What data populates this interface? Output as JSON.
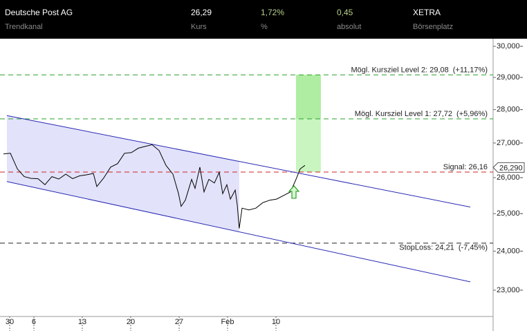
{
  "header": {
    "name": "Deutsche Post AG",
    "name_sub": "Trendkanal",
    "fields": [
      {
        "value": "26,29",
        "label": "Kurs"
      },
      {
        "value": "1,72%",
        "label": "%"
      },
      {
        "value": "0,45",
        "label": "absolut"
      },
      {
        "value": "XETRA",
        "label": "Börsenplatz"
      }
    ]
  },
  "chart_data": {
    "type": "line",
    "log_y": true,
    "xlim": [
      -1,
      49.93
    ],
    "ylim": [
      22.35,
      30.25
    ],
    "xticks": [
      {
        "value": 0,
        "label": "30"
      },
      {
        "value": 2.5,
        "label": "6"
      },
      {
        "value": 7.5,
        "label": "13"
      },
      {
        "value": 12.5,
        "label": "20"
      },
      {
        "value": 17.5,
        "label": "27"
      },
      {
        "value": 22.5,
        "label": "Feb"
      },
      {
        "value": 27.5,
        "label": "10"
      }
    ],
    "yticks": [
      {
        "value": 23,
        "label": "23,000"
      },
      {
        "value": 24,
        "label": "24,000"
      },
      {
        "value": 25,
        "label": "25,000"
      },
      {
        "value": 26,
        "label": "26,000"
      },
      {
        "value": 27,
        "label": "27,000"
      },
      {
        "value": 28,
        "label": "28,000"
      },
      {
        "value": 29,
        "label": "29,000"
      },
      {
        "value": 30,
        "label": "30,000"
      }
    ],
    "series": [
      {
        "color": "#000000",
        "x": [
          -0.64,
          0.07,
          0.79,
          1.5,
          2.21,
          2.93,
          3.64,
          4.36,
          5.07,
          5.79,
          6.5,
          7.21,
          7.93,
          8.64,
          9.0,
          9.71,
          10.43,
          11.14,
          11.86,
          12.57,
          13.29,
          14.0,
          14.71,
          15.43,
          16.14,
          16.86,
          17.43,
          17.71,
          18.14,
          18.79,
          19.14,
          19.64,
          20.07,
          20.57,
          21.14,
          21.64,
          22.0,
          22.43,
          22.79,
          23.29,
          23.5,
          23.71,
          24.0,
          24.71,
          25.43,
          26.14,
          26.86,
          27.57,
          28.29,
          29.0,
          29.57,
          30.0,
          30.5
        ],
        "values": [
          26.68,
          26.7,
          26.25,
          26.03,
          25.98,
          25.97,
          25.8,
          26.03,
          25.96,
          26.1,
          25.97,
          26.05,
          26.08,
          26.12,
          25.75,
          25.99,
          26.3,
          26.4,
          26.7,
          26.72,
          26.85,
          26.9,
          26.95,
          26.78,
          26.35,
          26.1,
          25.56,
          25.2,
          25.37,
          25.95,
          25.7,
          26.3,
          25.6,
          25.95,
          25.85,
          26.15,
          25.55,
          25.8,
          25.4,
          25.65,
          25.25,
          24.6,
          25.15,
          25.1,
          25.15,
          25.3,
          25.37,
          25.4,
          25.5,
          25.6,
          25.95,
          26.25,
          26.35
        ]
      },
      {
        "color": "#2828b4",
        "x": [
          -0.29,
          47.57
        ],
        "values": [
          27.82,
          25.18
        ]
      },
      {
        "color": "#2828b4",
        "x": [
          -0.29,
          47.57
        ],
        "values": [
          25.89,
          23.21
        ]
      }
    ],
    "channel_shade": {
      "x": [
        -0.29,
        23.71
      ],
      "color": "#e2e2fa"
    },
    "target_zone": {
      "x": [
        29.57,
        32.14
      ],
      "color": "#c8f5c0"
    },
    "signal_x": 29.36,
    "levels": [
      {
        "text": "Mögl. Kursziel Level 2: 29,08",
        "change": "(+11,17%)",
        "value": 29.08,
        "color": "#2aa02a"
      },
      {
        "text": "Mögl. Kursziel Level 1: 27,72",
        "change": "(+5,96%)",
        "value": 27.72,
        "color": "#2aa02a"
      },
      {
        "text": "Signal: 26,16",
        "value": 26.16,
        "color": "#d02020"
      },
      {
        "text": "StopLoss: 24,21",
        "change": "(-7,45%)",
        "value": 24.21,
        "color": "#222222"
      }
    ],
    "last": {
      "value": 26.29,
      "label": "26,290"
    }
  }
}
